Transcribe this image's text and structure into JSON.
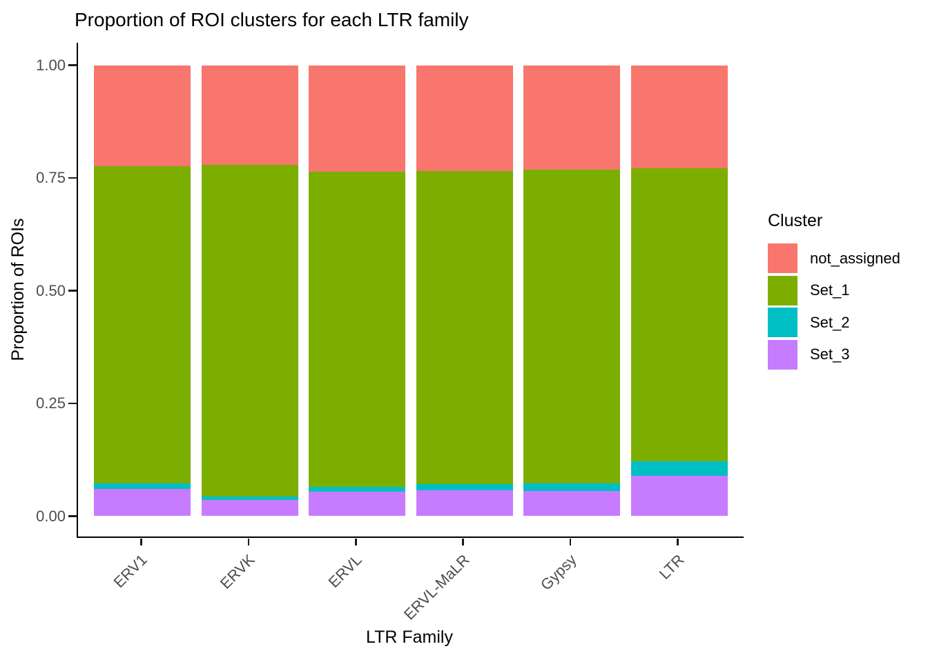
{
  "figure": {
    "title": "Proportion of ROI clusters for each LTR family",
    "x_axis_title": "LTR Family",
    "y_axis_title": "Proportion of ROIs"
  },
  "legend": {
    "title": "Cluster",
    "items": [
      {
        "label": "not_assigned",
        "color": "#F8766D"
      },
      {
        "label": "Set_1",
        "color": "#7CAE00"
      },
      {
        "label": "Set_2",
        "color": "#00BFC4"
      },
      {
        "label": "Set_3",
        "color": "#C77CFF"
      }
    ]
  },
  "chart_data": {
    "type": "bar",
    "subtype": "stacked",
    "title": "Proportion of ROI clusters for each LTR family",
    "xlabel": "LTR Family",
    "ylabel": "Proportion of ROIs",
    "categories": [
      "ERV1",
      "ERVK",
      "ERVL",
      "ERVL-MaLR",
      "Gypsy",
      "LTR"
    ],
    "stack_order": "bottom_to_top",
    "series": [
      {
        "name": "Set_3",
        "color": "#C77CFF",
        "values": [
          0.06,
          0.036,
          0.054,
          0.057,
          0.056,
          0.09
        ]
      },
      {
        "name": "Set_2",
        "color": "#00BFC4",
        "values": [
          0.012,
          0.008,
          0.011,
          0.014,
          0.017,
          0.032
        ]
      },
      {
        "name": "Set_1",
        "color": "#7CAE00",
        "values": [
          0.704,
          0.735,
          0.698,
          0.695,
          0.696,
          0.65
        ]
      },
      {
        "name": "not_assigned",
        "color": "#F8766D",
        "values": [
          0.224,
          0.221,
          0.237,
          0.234,
          0.231,
          0.228
        ]
      }
    ],
    "y_ticks": [
      {
        "value": 0.0,
        "label": "0.00"
      },
      {
        "value": 0.25,
        "label": "0.25"
      },
      {
        "value": 0.5,
        "label": "0.50"
      },
      {
        "value": 0.75,
        "label": "0.75"
      },
      {
        "value": 1.0,
        "label": "1.00"
      }
    ],
    "ylim": [
      0,
      1
    ],
    "grid": false,
    "background": "#ffffff",
    "legend_position": "right",
    "tick_label_color": "#4D4D4D",
    "axis_line_color": "#000000"
  }
}
